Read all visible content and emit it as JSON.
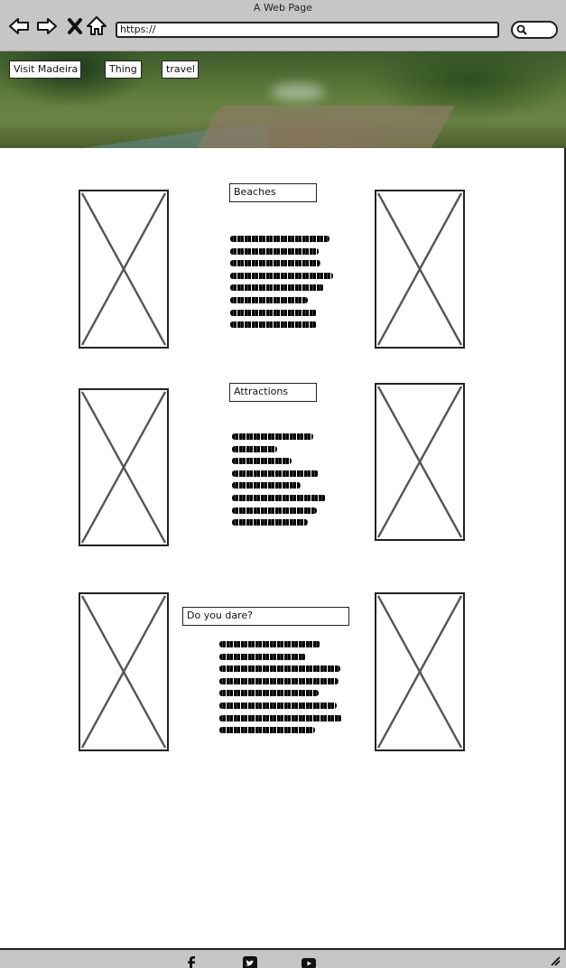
{
  "window": {
    "title": "A Web Page"
  },
  "browser": {
    "url": "https://",
    "buttons": {
      "back": "back-icon",
      "forward": "forward-icon",
      "stop": "close-icon",
      "home": "home-icon"
    },
    "search_icon": "search-icon"
  },
  "nav": {
    "items": [
      {
        "label": "Visit Madeira"
      },
      {
        "label": "Thing"
      },
      {
        "label": "travel"
      }
    ]
  },
  "sections": [
    {
      "title": "Beaches",
      "lines": 8
    },
    {
      "title": "Attractions",
      "lines": 8
    },
    {
      "title": "Do you dare?",
      "lines": 8
    }
  ],
  "footer": {
    "social": [
      "facebook-icon",
      "twitter-icon",
      "youtube-icon"
    ]
  },
  "colors": {
    "chrome": "#c6c6c6",
    "stroke": "#222222",
    "placeholder_x": "#555555"
  }
}
